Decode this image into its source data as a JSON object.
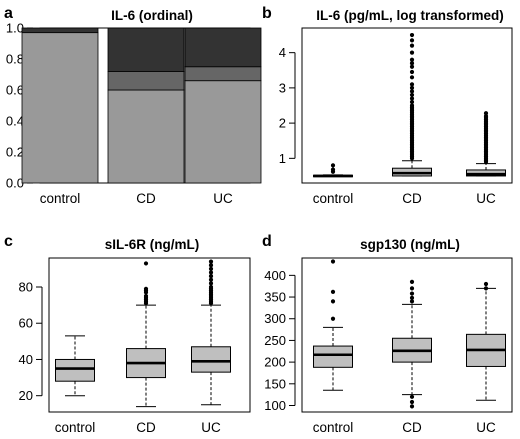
{
  "chart_data": [
    {
      "panel_letter": "a",
      "type": "bar",
      "subtype": "stacked-proportion",
      "title": "IL-6 (ordinal)",
      "xlabel": "",
      "ylabel": "",
      "ylim": [
        0,
        1
      ],
      "yticks": [
        0.0,
        0.2,
        0.4,
        0.6,
        0.8,
        1.0
      ],
      "ytick_labels": [
        "0.0",
        "0.2",
        "0.4",
        "0.6",
        "0.8",
        "1.0"
      ],
      "categories": [
        "control",
        "CD",
        "UC"
      ],
      "series": [
        {
          "values": [
            0.97,
            0.6,
            0.66
          ],
          "color": "#999999"
        },
        {
          "values": [
            0.0,
            0.12,
            0.09
          ],
          "color": "#666666"
        },
        {
          "values": [
            0.03,
            0.28,
            0.25
          ],
          "color": "#333333"
        }
      ]
    },
    {
      "panel_letter": "b",
      "type": "box",
      "title": "IL-6 (pg/mL, log transformed)",
      "xlabel": "",
      "ylabel": "",
      "ylim": [
        0.3,
        4.7
      ],
      "yticks": [
        1,
        2,
        3,
        4
      ],
      "ytick_labels": [
        "1",
        "2",
        "3",
        "4"
      ],
      "categories": [
        "control",
        "CD",
        "UC"
      ],
      "boxes": [
        {
          "q1": 0.5,
          "median": 0.5,
          "q3": 0.52,
          "whisker_low": 0.5,
          "whisker_high": 0.53,
          "outliers": [
            0.62,
            0.68,
            0.8
          ]
        },
        {
          "q1": 0.5,
          "median": 0.58,
          "q3": 0.72,
          "whisker_low": 0.5,
          "whisker_high": 0.93,
          "outliers": [
            1.0,
            1.05,
            1.1,
            1.15,
            1.2,
            1.25,
            1.3,
            1.35,
            1.4,
            1.45,
            1.5,
            1.55,
            1.6,
            1.65,
            1.7,
            1.75,
            1.8,
            1.85,
            1.9,
            1.95,
            2.0,
            2.05,
            2.1,
            2.15,
            2.2,
            2.25,
            2.3,
            2.35,
            2.4,
            2.45,
            2.5,
            2.6,
            2.7,
            2.8,
            2.9,
            3.0,
            3.1,
            3.3,
            3.45,
            3.6,
            3.7,
            3.8,
            4.0,
            4.2,
            4.35,
            4.5
          ]
        },
        {
          "q1": 0.5,
          "median": 0.55,
          "q3": 0.67,
          "whisker_low": 0.5,
          "whisker_high": 0.85,
          "outliers": [
            0.9,
            0.95,
            1.0,
            1.05,
            1.1,
            1.15,
            1.2,
            1.25,
            1.3,
            1.35,
            1.4,
            1.45,
            1.5,
            1.55,
            1.6,
            1.65,
            1.7,
            1.75,
            1.8,
            1.85,
            1.9,
            1.95,
            2.0,
            2.05,
            2.1,
            2.15,
            2.2,
            2.28
          ]
        }
      ]
    },
    {
      "panel_letter": "c",
      "type": "box",
      "title": "sIL-6R (ng/mL)",
      "xlabel": "",
      "ylabel": "",
      "ylim": [
        11,
        96
      ],
      "yticks": [
        20,
        40,
        60,
        80
      ],
      "ytick_labels": [
        "20",
        "40",
        "60",
        "80"
      ],
      "categories": [
        "control",
        "CD",
        "UC"
      ],
      "boxes": [
        {
          "q1": 28,
          "median": 35,
          "q3": 40,
          "whisker_low": 20,
          "whisker_high": 53,
          "outliers": []
        },
        {
          "q1": 30,
          "median": 38,
          "q3": 46,
          "whisker_low": 14,
          "whisker_high": 70,
          "outliers": [
            71,
            72,
            73,
            74,
            75,
            77,
            78,
            79,
            93
          ]
        },
        {
          "q1": 33,
          "median": 39,
          "q3": 47,
          "whisker_low": 15,
          "whisker_high": 70,
          "outliers": [
            71,
            72,
            73,
            74,
            75,
            76,
            77,
            78,
            79,
            80,
            82,
            84,
            86,
            88,
            90,
            92,
            94
          ]
        }
      ]
    },
    {
      "panel_letter": "d",
      "type": "box",
      "title": "sgp130 (ng/mL)",
      "xlabel": "",
      "ylabel": "",
      "ylim": [
        85,
        440
      ],
      "yticks": [
        100,
        150,
        200,
        250,
        300,
        350,
        400
      ],
      "ytick_labels": [
        "100",
        "150",
        "200",
        "250",
        "300",
        "350",
        "400"
      ],
      "categories": [
        "control",
        "CD",
        "UC"
      ],
      "boxes": [
        {
          "q1": 188,
          "median": 217,
          "q3": 237,
          "whisker_low": 135,
          "whisker_high": 280,
          "outliers": [
            300,
            340,
            362,
            432
          ]
        },
        {
          "q1": 200,
          "median": 226,
          "q3": 255,
          "whisker_low": 125,
          "whisker_high": 333,
          "outliers": [
            98,
            108,
            120,
            340,
            348,
            358,
            370,
            385
          ]
        },
        {
          "q1": 190,
          "median": 228,
          "q3": 264,
          "whisker_low": 112,
          "whisker_high": 370,
          "outliers": [
            370,
            380
          ]
        }
      ]
    }
  ]
}
